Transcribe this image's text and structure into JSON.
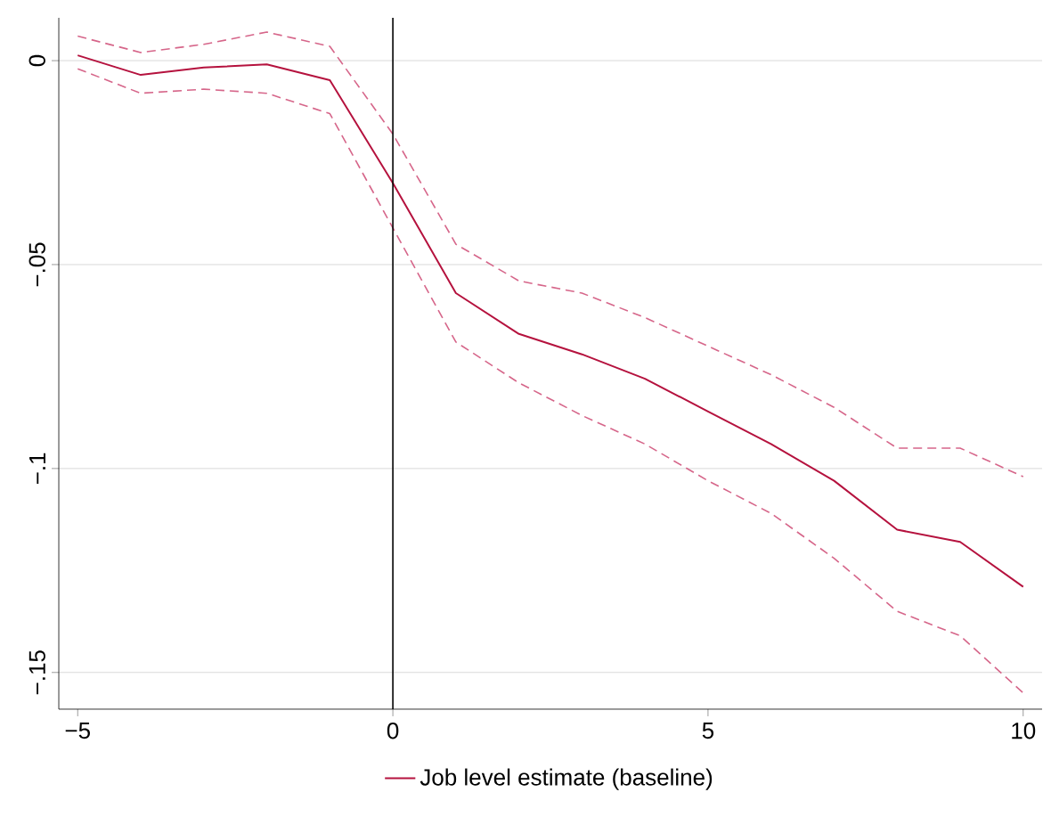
{
  "chart_data": {
    "type": "line",
    "x": [
      -5,
      -4,
      -3,
      -2,
      -1,
      0,
      1,
      2,
      3,
      4,
      5,
      6,
      7,
      8,
      9,
      10
    ],
    "series": [
      {
        "name": "Job level estimate (baseline)",
        "color": "#b5123e",
        "line_style": "solid",
        "values": [
          0.0013,
          -0.0035,
          -0.0017,
          -0.0009,
          -0.0048,
          -0.03,
          -0.057,
          -0.067,
          -0.072,
          -0.078,
          -0.086,
          -0.094,
          -0.103,
          -0.115,
          -0.118,
          -0.129
        ]
      },
      {
        "color": "#d6668a",
        "line_style": "dashed",
        "values": [
          0.006,
          0.002,
          0.004,
          0.007,
          0.0035,
          -0.018,
          -0.045,
          -0.054,
          -0.057,
          -0.063,
          -0.07,
          -0.077,
          -0.085,
          -0.095,
          -0.095,
          -0.102
        ]
      },
      {
        "color": "#d6668a",
        "line_style": "dashed",
        "values": [
          -0.002,
          -0.008,
          -0.007,
          -0.008,
          -0.013,
          -0.041,
          -0.069,
          -0.079,
          -0.087,
          -0.094,
          -0.103,
          -0.111,
          -0.122,
          -0.135,
          -0.141,
          -0.155
        ]
      }
    ],
    "xlim": [
      -5.3,
      10.3
    ],
    "ylim": [
      -0.159,
      0.0105
    ],
    "xticks": [
      {
        "value": -5,
        "label": "−5"
      },
      0,
      5,
      10
    ],
    "yticks": [
      {
        "value": 0,
        "label": "0"
      },
      {
        "value": -0.05,
        "label": "−.05"
      },
      {
        "value": -0.1,
        "label": "−.1"
      },
      {
        "value": -0.15,
        "label": "−.15"
      }
    ],
    "grid": "y",
    "legend": "bottom",
    "ref_lines": [
      {
        "axis": "x",
        "value": 0,
        "color": "#000000"
      }
    ]
  }
}
